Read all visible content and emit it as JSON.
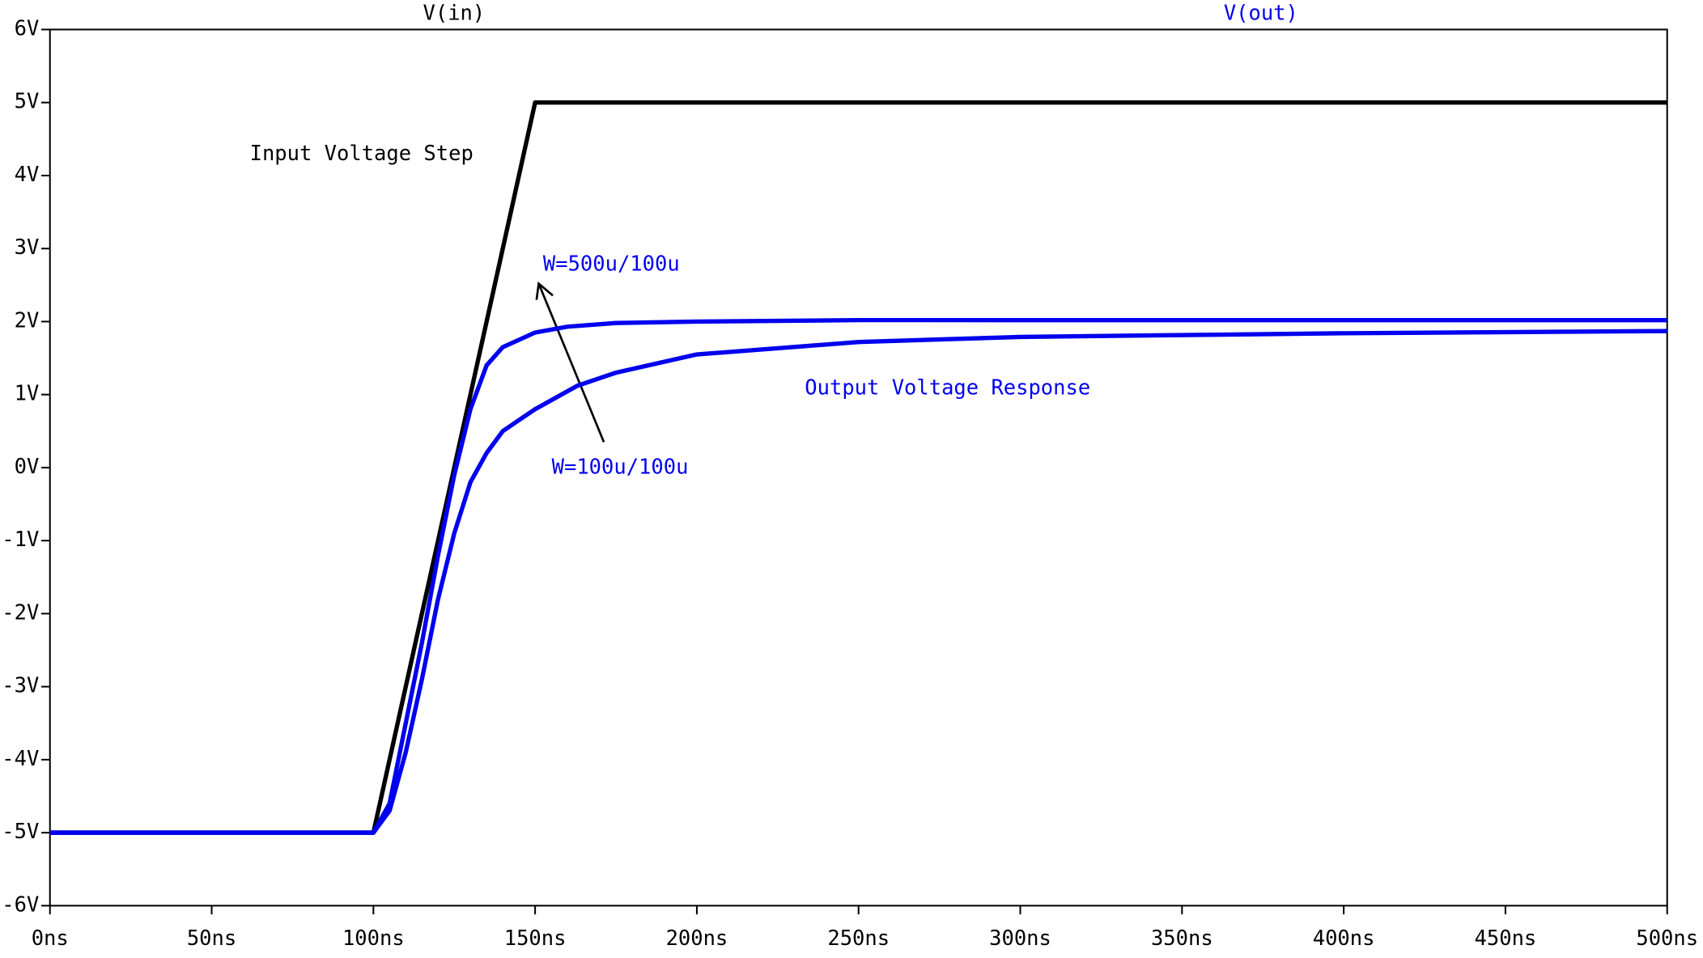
{
  "chart_data": {
    "type": "line",
    "xlim": [
      0,
      500
    ],
    "ylim": [
      -6,
      6
    ],
    "xticks": [
      {
        "value": 0,
        "label": "0ns"
      },
      {
        "value": 50,
        "label": "50ns"
      },
      {
        "value": 100,
        "label": "100ns"
      },
      {
        "value": 150,
        "label": "150ns"
      },
      {
        "value": 200,
        "label": "200ns"
      },
      {
        "value": 250,
        "label": "250ns"
      },
      {
        "value": 300,
        "label": "300ns"
      },
      {
        "value": 350,
        "label": "350ns"
      },
      {
        "value": 400,
        "label": "400ns"
      },
      {
        "value": 450,
        "label": "450ns"
      },
      {
        "value": 500,
        "label": "500ns"
      }
    ],
    "yticks": [
      {
        "value": 6,
        "label": "6V"
      },
      {
        "value": 5,
        "label": "5V"
      },
      {
        "value": 4,
        "label": "4V"
      },
      {
        "value": 3,
        "label": "3V"
      },
      {
        "value": 2,
        "label": "2V"
      },
      {
        "value": 1,
        "label": "1V"
      },
      {
        "value": 0,
        "label": "0V"
      },
      {
        "value": -1,
        "label": "-1V"
      },
      {
        "value": -2,
        "label": "-2V"
      },
      {
        "value": -3,
        "label": "-3V"
      },
      {
        "value": -4,
        "label": "-4V"
      },
      {
        "value": -5,
        "label": "-5V"
      },
      {
        "value": -6,
        "label": "-6V"
      }
    ],
    "grid": false,
    "series": [
      {
        "name": "V(in)",
        "color": "#000000",
        "x": [
          0,
          100,
          150,
          500
        ],
        "values": [
          -5,
          -5,
          5,
          5
        ]
      },
      {
        "name": "V(out)",
        "color": "#0000ee",
        "x": [
          0,
          100,
          105,
          110,
          115,
          120,
          125,
          130,
          135,
          140,
          150,
          160,
          175,
          200,
          250,
          300,
          400,
          500
        ],
        "values": [
          -5,
          -5,
          -4.6,
          -3.5,
          -2.4,
          -1.2,
          -0.1,
          0.8,
          1.4,
          1.65,
          1.85,
          1.93,
          1.98,
          2.0,
          2.02,
          2.02,
          2.02,
          2.02
        ]
      },
      {
        "color": "#0000ee",
        "x": [
          0,
          100,
          105,
          110,
          115,
          120,
          125,
          130,
          135,
          140,
          150,
          163,
          175,
          200,
          250,
          300,
          400,
          500
        ],
        "values": [
          -5,
          -5,
          -4.7,
          -3.9,
          -2.9,
          -1.8,
          -0.9,
          -0.2,
          0.2,
          0.5,
          0.8,
          1.12,
          1.3,
          1.55,
          1.72,
          1.79,
          1.84,
          1.87
        ]
      }
    ],
    "annotations": [
      "Input Voltage Step",
      "W=500u/100u",
      "Output Voltage Response",
      "W=100u/100u"
    ]
  }
}
